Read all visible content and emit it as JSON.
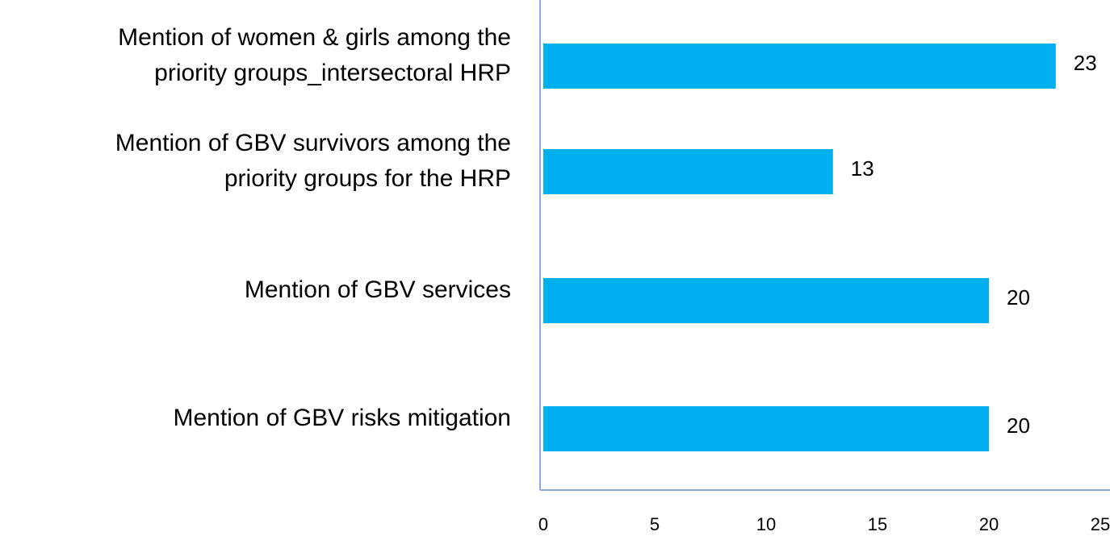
{
  "chart_data": {
    "type": "hbar",
    "categories": [
      "Mention of women & girls among the\npriority groups_intersectoral HRP",
      "Mention of GBV survivors among the\npriority groups for the HRP",
      "Mention of GBV services",
      "Mention of GBV risks mitigation"
    ],
    "values": [
      23,
      13,
      20,
      20
    ],
    "color": "#00b0f0",
    "xlim": [
      0,
      25
    ],
    "xticks": [
      0,
      5,
      10,
      15,
      20,
      25
    ]
  }
}
